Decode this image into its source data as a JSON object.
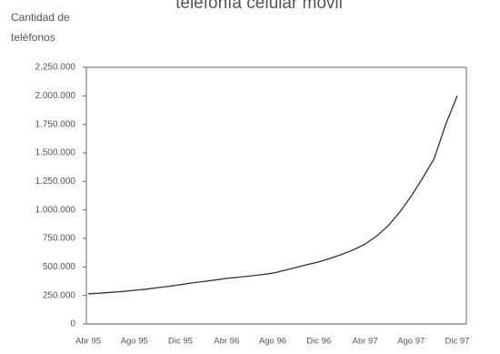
{
  "chart_data": {
    "type": "line",
    "title": "telefonía celular móvil",
    "y_label": [
      "Cantidad de",
      "teléfonos"
    ],
    "categories": [
      "Abr 95",
      null,
      null,
      null,
      "Ago 95",
      null,
      null,
      null,
      "Dic 95",
      null,
      null,
      null,
      "Abr 96",
      null,
      null,
      null,
      "Ago 96",
      null,
      null,
      null,
      "Dic 96",
      null,
      null,
      null,
      "Abr 97",
      null,
      null,
      null,
      "Ago 97",
      null,
      null,
      null,
      "Dic 97"
    ],
    "series": [
      {
        "color": "#333333",
        "values": [
          265000,
          270000,
          278000,
          285000,
          295000,
          305000,
          318000,
          330000,
          345000,
          360000,
          372000,
          385000,
          400000,
          410000,
          420000,
          432000,
          445000,
          470000,
          495000,
          520000,
          545000,
          575000,
          610000,
          650000,
          700000,
          770000,
          860000,
          980000,
          1120000,
          1280000,
          1450000,
          1750000,
          2000000
        ]
      }
    ],
    "ylim": [
      0,
      2250000
    ],
    "yticks": [
      0,
      {
        "value": 250000,
        "label": "250.000"
      },
      {
        "value": 500000,
        "label": "500.000"
      },
      {
        "value": 750000,
        "label": "750.000"
      },
      {
        "value": 1000000,
        "label": "1.000.000"
      },
      {
        "value": 1250000,
        "label": "1.250.000"
      },
      {
        "value": 1500000,
        "label": "1.500.000"
      },
      {
        "value": 1750000,
        "label": "1.750.000"
      },
      {
        "value": 2000000,
        "label": "2.000.000"
      },
      {
        "value": 2250000,
        "label": "2.250.000"
      }
    ],
    "grid": false
  }
}
